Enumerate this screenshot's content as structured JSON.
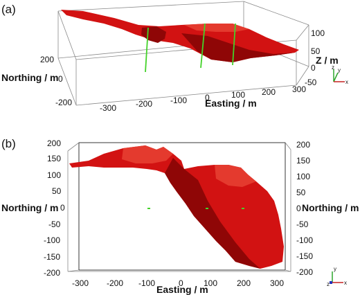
{
  "panels": {
    "a": {
      "label": "(a)",
      "axis_titles": {
        "northing": "Northing / m",
        "easting": "Easting / m",
        "z": "Z / m"
      },
      "easting_ticks": [
        "-300",
        "-200",
        "-100",
        "0",
        "100",
        "200",
        "300"
      ],
      "northing_ticks": [
        "200",
        "0",
        "-200"
      ],
      "z_ticks": [
        "100",
        "50",
        "0",
        "-50"
      ],
      "triad": {
        "z": "z",
        "y": "y",
        "x": "x"
      }
    },
    "b": {
      "label": "(b)",
      "axis_titles": {
        "northing_left": "Northing / m",
        "northing_right": "Northing / m",
        "easting": "Easting / m"
      },
      "easting_ticks": [
        "-300",
        "-200",
        "-100",
        "0",
        "100",
        "200",
        "300"
      ],
      "northing_ticks_left": [
        "200",
        "150",
        "100",
        "50",
        "0",
        "-50",
        "-100",
        "-150",
        "-200"
      ],
      "northing_ticks_right": [
        "200",
        "150",
        "100",
        "50",
        "0",
        "-50",
        "-100",
        "-150",
        "-200"
      ],
      "triad": {
        "y": "y",
        "z": "z",
        "x": "x"
      }
    }
  },
  "colors": {
    "body": "#d21212",
    "body_dark": "#8f0606",
    "body_light": "#e43a2e",
    "wells": "#44d22a",
    "triad_y": "#2aa52a",
    "triad_x": "#c62020",
    "triad_z": "#2233bb"
  }
}
